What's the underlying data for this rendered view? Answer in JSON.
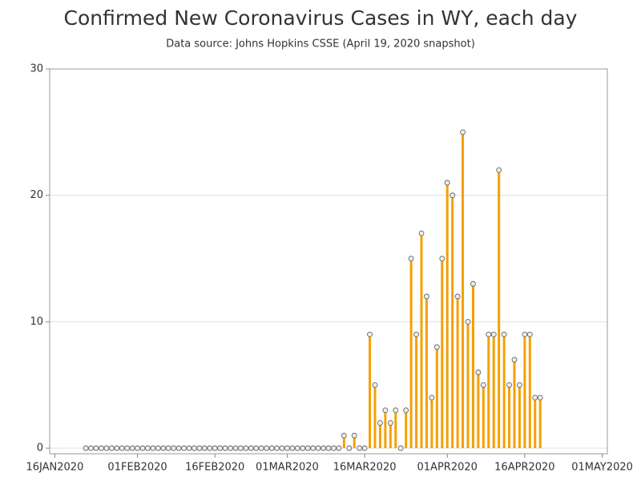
{
  "chart_data": {
    "type": "needle",
    "title": "Confirmed New Coronavirus Cases in WY, each day",
    "subtitle": "Data source: Johns Hopkins CSSE (April 19, 2020 snapshot)",
    "color": "#f5a000",
    "x": [
      "2020-01-22",
      "2020-01-23",
      "2020-01-24",
      "2020-01-25",
      "2020-01-26",
      "2020-01-27",
      "2020-01-28",
      "2020-01-29",
      "2020-01-30",
      "2020-01-31",
      "2020-02-01",
      "2020-02-02",
      "2020-02-03",
      "2020-02-04",
      "2020-02-05",
      "2020-02-06",
      "2020-02-07",
      "2020-02-08",
      "2020-02-09",
      "2020-02-10",
      "2020-02-11",
      "2020-02-12",
      "2020-02-13",
      "2020-02-14",
      "2020-02-15",
      "2020-02-16",
      "2020-02-17",
      "2020-02-18",
      "2020-02-19",
      "2020-02-20",
      "2020-02-21",
      "2020-02-22",
      "2020-02-23",
      "2020-02-24",
      "2020-02-25",
      "2020-02-26",
      "2020-02-27",
      "2020-02-28",
      "2020-02-29",
      "2020-03-01",
      "2020-03-02",
      "2020-03-03",
      "2020-03-04",
      "2020-03-05",
      "2020-03-06",
      "2020-03-07",
      "2020-03-08",
      "2020-03-09",
      "2020-03-10",
      "2020-03-11",
      "2020-03-12",
      "2020-03-13",
      "2020-03-14",
      "2020-03-15",
      "2020-03-16",
      "2020-03-17",
      "2020-03-18",
      "2020-03-19",
      "2020-03-20",
      "2020-03-21",
      "2020-03-22",
      "2020-03-23",
      "2020-03-24",
      "2020-03-25",
      "2020-03-26",
      "2020-03-27",
      "2020-03-28",
      "2020-03-29",
      "2020-03-30",
      "2020-03-31",
      "2020-04-01",
      "2020-04-02",
      "2020-04-03",
      "2020-04-04",
      "2020-04-05",
      "2020-04-06",
      "2020-04-07",
      "2020-04-08",
      "2020-04-09",
      "2020-04-10",
      "2020-04-11",
      "2020-04-12",
      "2020-04-13",
      "2020-04-14",
      "2020-04-15",
      "2020-04-16",
      "2020-04-17",
      "2020-04-18",
      "2020-04-19"
    ],
    "values": [
      0,
      0,
      0,
      0,
      0,
      0,
      0,
      0,
      0,
      0,
      0,
      0,
      0,
      0,
      0,
      0,
      0,
      0,
      0,
      0,
      0,
      0,
      0,
      0,
      0,
      0,
      0,
      0,
      0,
      0,
      0,
      0,
      0,
      0,
      0,
      0,
      0,
      0,
      0,
      0,
      0,
      0,
      0,
      0,
      0,
      0,
      0,
      0,
      0,
      0,
      1,
      0,
      1,
      0,
      0,
      9,
      5,
      2,
      3,
      2,
      3,
      0,
      3,
      15,
      9,
      17,
      12,
      4,
      8,
      15,
      21,
      20,
      12,
      25,
      10,
      13,
      6,
      5,
      9,
      9,
      22,
      9,
      5,
      7,
      5,
      9,
      9,
      4,
      4
    ],
    "xlim": [
      "2020-01-15",
      "2020-05-02"
    ],
    "xticks": [
      {
        "value": "2020-01-16",
        "label": "16JAN2020"
      },
      {
        "value": "2020-02-01",
        "label": "01FEB2020"
      },
      {
        "value": "2020-02-16",
        "label": "16FEB2020"
      },
      {
        "value": "2020-03-01",
        "label": "01MAR2020"
      },
      {
        "value": "2020-03-16",
        "label": "16MAR2020"
      },
      {
        "value": "2020-04-01",
        "label": "01APR2020"
      },
      {
        "value": "2020-04-16",
        "label": "16APR2020"
      },
      {
        "value": "2020-05-01",
        "label": "01MAY2020"
      }
    ],
    "ylim": [
      -0.44,
      30
    ],
    "yticks": [
      0,
      10,
      20,
      30
    ],
    "grid": true
  }
}
